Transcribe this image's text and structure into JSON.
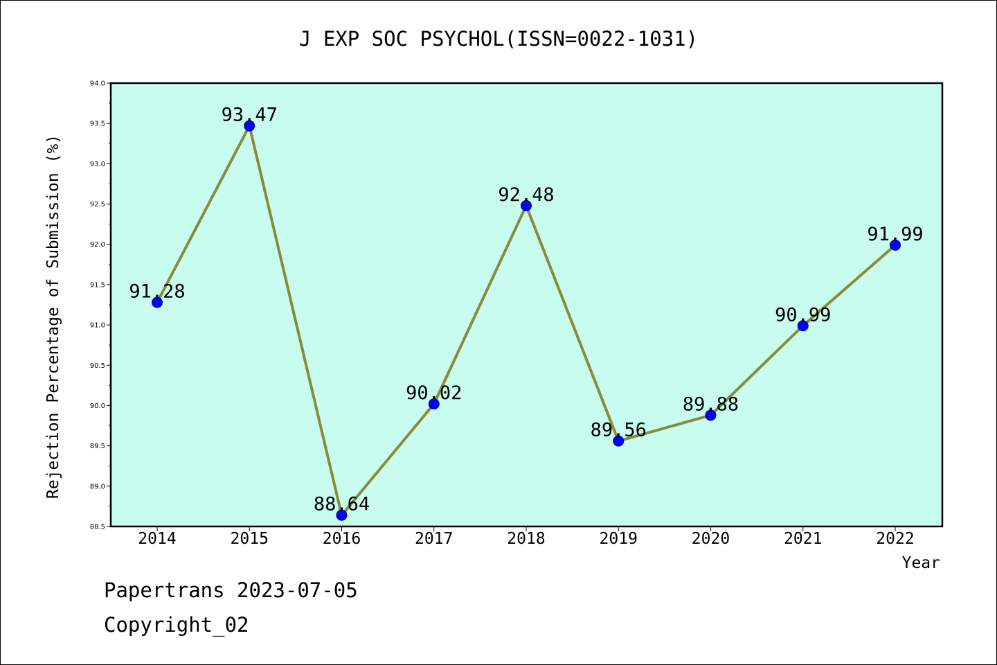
{
  "chart_data": {
    "type": "line",
    "title": "J EXP SOC PSYCHOL(ISSN=0022-1031)",
    "xlabel": "Year",
    "ylabel": "Rejection Percentage of Submission (%)",
    "categories": [
      "2014",
      "2015",
      "2016",
      "2017",
      "2018",
      "2019",
      "2020",
      "2021",
      "2022"
    ],
    "values": [
      91.28,
      93.47,
      88.64,
      90.02,
      92.48,
      89.56,
      89.88,
      90.99,
      91.99
    ],
    "data_labels": [
      "91.28",
      "93.47",
      "88.64",
      "90.02",
      "92.48",
      "89.56",
      "89.88",
      "90.99",
      "91.99"
    ],
    "ylim": [
      88.5,
      94.0
    ],
    "yticks": [
      "88.5",
      "89.0",
      "89.5",
      "90.0",
      "90.5",
      "91.0",
      "91.5",
      "92.0",
      "92.5",
      "93.0",
      "93.5",
      "94.0"
    ],
    "grid": false,
    "colors": {
      "plot_bg": "#c8fcee",
      "line": "#8b8a3a",
      "marker": "#0000ff"
    }
  },
  "footer": {
    "line1": "Papertrans 2023-07-05",
    "line2": "Copyright_02"
  }
}
